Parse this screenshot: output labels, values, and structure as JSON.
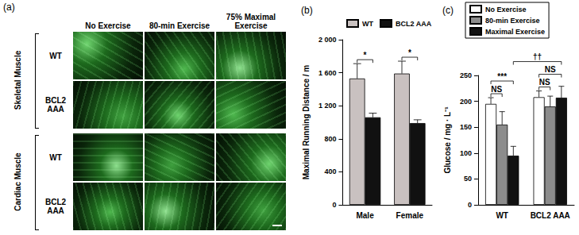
{
  "figure_panel": {
    "label": "(a)",
    "columns": [
      "No Exercise",
      "80-min Exercise",
      "75% Maximal Exercise"
    ],
    "groups": [
      {
        "label": "Skeletal Muscle",
        "rows": [
          "WT",
          "BCL2 AAA"
        ]
      },
      {
        "label": "Cardiac Muscle",
        "rows": [
          "WT",
          "BCL2 AAA"
        ]
      }
    ]
  },
  "chart_data": [
    {
      "type": "bar",
      "title": "(b)",
      "y_label": "Maximal Running Distance / m",
      "categories": [
        "Male",
        "Female"
      ],
      "series": [
        {
          "name": "WT",
          "color": "#c9c1c0",
          "values": [
            1530,
            1590
          ],
          "errors": [
            180,
            150
          ]
        },
        {
          "name": "BCL2 AAA",
          "color": "#111111",
          "values": [
            1060,
            990
          ],
          "errors": [
            50,
            40
          ]
        }
      ],
      "ylim": [
        0,
        2000
      ],
      "yticks": [
        0,
        400,
        800,
        {
          "value": 1200,
          "label": "1 200"
        },
        {
          "value": 1600,
          "label": "1 600"
        },
        {
          "value": 2000,
          "label": "2 000"
        }
      ],
      "grid": false,
      "legend": "top",
      "annotations": [
        {
          "text": "*",
          "from": {
            "category": "Male",
            "series": "WT"
          },
          "to": {
            "category": "Male",
            "series": "BCL2 AAA"
          }
        },
        {
          "text": "*",
          "from": {
            "category": "Female",
            "series": "WT"
          },
          "to": {
            "category": "Female",
            "series": "BCL2 AAA"
          }
        }
      ]
    },
    {
      "type": "bar",
      "title": "(c)",
      "y_label": "Glucose / mg · L⁻¹",
      "categories": [
        "WT",
        "BCL2 AAA"
      ],
      "series": [
        {
          "name": "No Exercise",
          "color": "#ffffff",
          "values": [
            195,
            208
          ],
          "errors": [
            12,
            12
          ]
        },
        {
          "name": "80-min Exercise",
          "color": "#8c8c8c",
          "values": [
            155,
            190
          ],
          "errors": [
            25,
            20
          ]
        },
        {
          "name": "Maximal Exercise",
          "color": "#111111",
          "values": [
            95,
            207
          ],
          "errors": [
            18,
            22
          ]
        }
      ],
      "ylim": [
        0,
        250
      ],
      "yticks": [
        0,
        50,
        100,
        150,
        200,
        250
      ],
      "grid": false,
      "legend": "top",
      "annotations": [
        {
          "text": "NS",
          "from": {
            "category": "WT",
            "series": "No Exercise"
          },
          "to": {
            "category": "WT",
            "series": "80-min Exercise"
          }
        },
        {
          "text": "***",
          "from": {
            "category": "WT",
            "series": "No Exercise"
          },
          "to": {
            "category": "WT",
            "series": "Maximal Exercise"
          }
        },
        {
          "text": "NS",
          "from": {
            "category": "BCL2 AAA",
            "series": "No Exercise"
          },
          "to": {
            "category": "BCL2 AAA",
            "series": "80-min Exercise"
          }
        },
        {
          "text": "NS",
          "from": {
            "category": "BCL2 AAA",
            "series": "No Exercise"
          },
          "to": {
            "category": "BCL2 AAA",
            "series": "Maximal Exercise"
          }
        },
        {
          "text": "††",
          "from": {
            "category": "WT",
            "series": "Maximal Exercise"
          },
          "to": {
            "category": "BCL2 AAA",
            "series": "Maximal Exercise"
          }
        }
      ]
    }
  ]
}
